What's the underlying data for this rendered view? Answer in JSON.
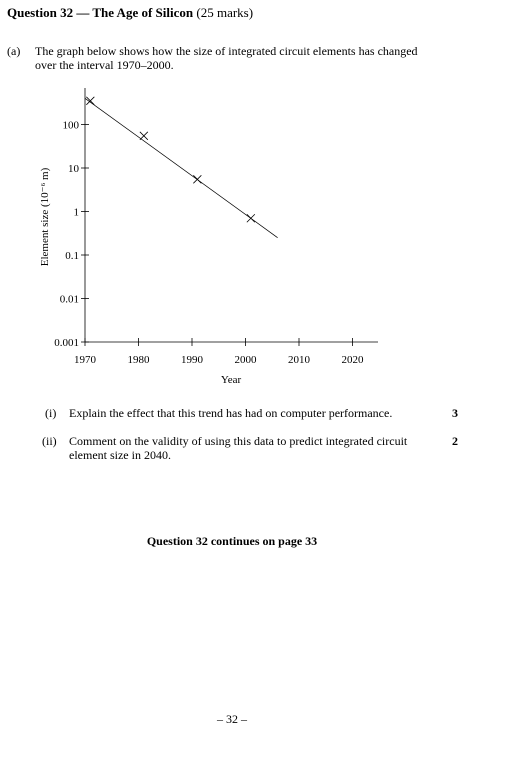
{
  "question": {
    "title_bold": "Question 32 — The Age of Silicon",
    "marks": "(25 marks)"
  },
  "part_a": {
    "label": "(a)",
    "text": "The graph below shows how the size of integrated circuit elements has changed over the interval 1970–2000."
  },
  "chart_data": {
    "type": "scatter",
    "xlabel": "Year",
    "ylabel": "Element size (10⁻⁶ m)",
    "y_scale": "log",
    "xlim": [
      1970,
      2025
    ],
    "ylim": [
      0.001,
      500
    ],
    "x_ticks": [
      1970,
      1980,
      1990,
      2000,
      2010,
      2020
    ],
    "x_tick_labels": [
      "1970",
      "1980",
      "1990",
      "2000",
      "2010",
      "2020"
    ],
    "y_ticks": [
      0.001,
      0.01,
      0.1,
      1,
      10,
      100
    ],
    "y_tick_labels": [
      "0.001",
      "0.01",
      "0.1",
      "1",
      "10",
      "100"
    ],
    "series": [
      {
        "marker": "x",
        "x": [
          1971,
          1981,
          1991,
          2001
        ],
        "y": [
          350,
          55,
          5.5,
          0.7
        ]
      }
    ],
    "trend_line": {
      "x": [
        1970,
        2006
      ],
      "y": [
        400,
        0.25
      ]
    },
    "grid": false
  },
  "part_i": {
    "num": "(i)",
    "text": "Explain the effect that this trend has had on computer performance.",
    "marks": "3"
  },
  "part_ii": {
    "num": "(ii)",
    "text": "Comment on the validity of using this data to predict integrated circuit element size in 2040.",
    "marks": "2"
  },
  "continues": "Question 32 continues on page 33",
  "page_number": "– 32 –"
}
